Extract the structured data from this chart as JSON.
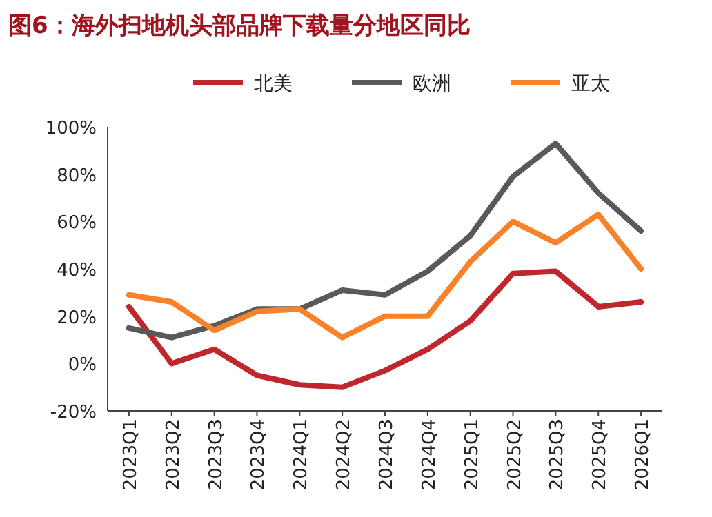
{
  "chart_data": {
    "type": "line",
    "title": "图6：海外扫地机头部品牌下载量分地区同比",
    "categories": [
      "2023Q1",
      "2023Q2",
      "2023Q3",
      "2023Q4",
      "2024Q1",
      "2024Q2",
      "2024Q3",
      "2024Q4",
      "2025Q1",
      "2025Q2",
      "2025Q3",
      "2025Q4",
      "2026Q1"
    ],
    "series": [
      {
        "name": "北美",
        "color": "#c0272d",
        "values": [
          24,
          0,
          6,
          -5,
          -9,
          -10,
          -3,
          6,
          18,
          38,
          39,
          24,
          26
        ]
      },
      {
        "name": "欧洲",
        "color": "#595959",
        "values": [
          15,
          11,
          16,
          23,
          23,
          31,
          29,
          39,
          54,
          79,
          93,
          72,
          56
        ]
      },
      {
        "name": "亚太",
        "color": "#f7822a",
        "values": [
          29,
          26,
          14,
          22,
          23,
          11,
          20,
          20,
          43,
          60,
          51,
          63,
          40
        ]
      }
    ],
    "ylim": [
      -20,
      100
    ],
    "yticks": [
      {
        "value": -20,
        "label": "-20%"
      },
      {
        "value": 0,
        "label": "0%"
      },
      {
        "value": 20,
        "label": "20%"
      },
      {
        "value": 40,
        "label": "40%"
      },
      {
        "value": 60,
        "label": "60%"
      },
      {
        "value": 80,
        "label": "80%"
      },
      {
        "value": 100,
        "label": "100%"
      }
    ],
    "legend": "top",
    "marker": "none",
    "line_style": "solid",
    "grid": false
  }
}
